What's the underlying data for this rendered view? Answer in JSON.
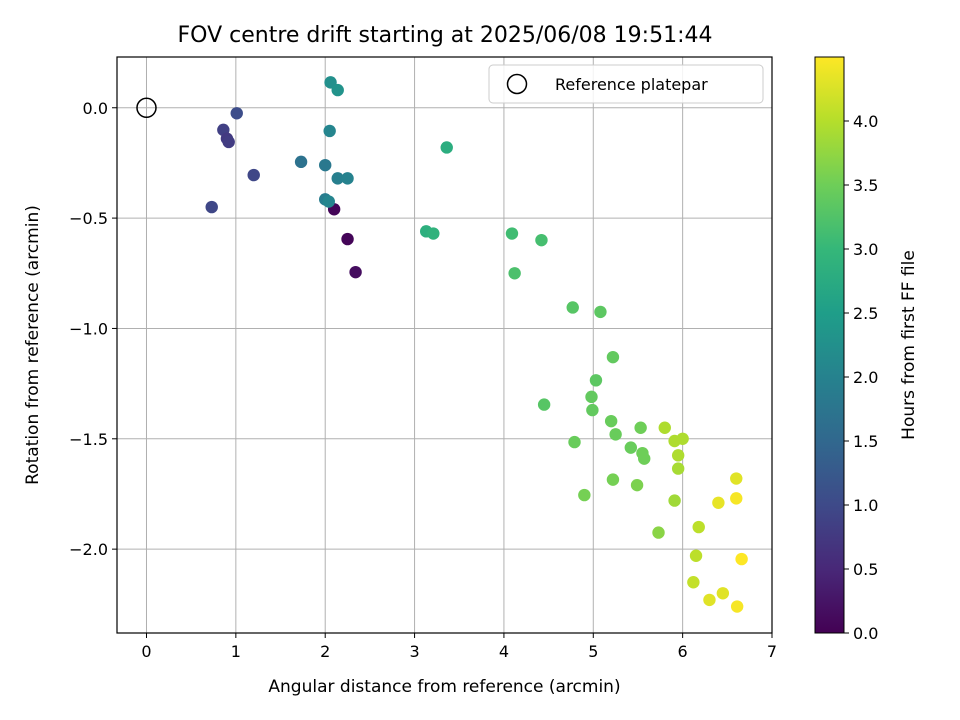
{
  "chart_data": {
    "type": "scatter",
    "title": "FOV centre drift starting at 2025/06/08 19:51:44",
    "xlabel": "Angular distance from reference (arcmin)",
    "ylabel": "Rotation from reference (arcmin)",
    "xlim": [
      -0.33,
      7.0
    ],
    "ylim": [
      -2.38,
      0.23
    ],
    "xticks": [
      0,
      1,
      2,
      3,
      4,
      5,
      6,
      7
    ],
    "xtick_labels": [
      "0",
      "1",
      "2",
      "3",
      "4",
      "5",
      "6",
      "7"
    ],
    "yticks": [
      0.0,
      -0.5,
      -1.0,
      -1.5,
      -2.0
    ],
    "ytick_labels": [
      "0.0",
      "−0.5",
      "−1.0",
      "−1.5",
      "−2.0"
    ],
    "grid": true,
    "legend": {
      "entries": [
        {
          "label": "Reference platepar",
          "marker": "open-circle"
        }
      ],
      "location": "upper right"
    },
    "reference_point": {
      "x": 0.0,
      "y": 0.0
    },
    "colorbar": {
      "label": "Hours from first FF file",
      "colormap": "viridis",
      "range": [
        0.0,
        4.5
      ],
      "ticks": [
        0.0,
        0.5,
        1.0,
        1.5,
        2.0,
        2.5,
        3.0,
        3.5,
        4.0
      ],
      "tick_labels": [
        "0.0",
        "0.5",
        "1.0",
        "1.5",
        "2.0",
        "2.5",
        "3.0",
        "3.5",
        "4.0"
      ]
    },
    "series": [
      {
        "points": [
          {
            "x": 2.1,
            "y": -0.46,
            "c": 0.05
          },
          {
            "x": 2.25,
            "y": -0.595,
            "c": 0.05
          },
          {
            "x": 2.34,
            "y": -0.745,
            "c": 0.15
          },
          {
            "x": 0.73,
            "y": -0.45,
            "c": 0.95
          },
          {
            "x": 1.01,
            "y": -0.025,
            "c": 1.05
          },
          {
            "x": 0.86,
            "y": -0.1,
            "c": 0.85
          },
          {
            "x": 0.9,
            "y": -0.14,
            "c": 0.75
          },
          {
            "x": 0.92,
            "y": -0.155,
            "c": 0.8
          },
          {
            "x": 1.2,
            "y": -0.305,
            "c": 0.95
          },
          {
            "x": 1.73,
            "y": -0.245,
            "c": 1.7
          },
          {
            "x": 2.0,
            "y": -0.26,
            "c": 1.8
          },
          {
            "x": 2.14,
            "y": -0.32,
            "c": 1.95
          },
          {
            "x": 2.25,
            "y": -0.32,
            "c": 2.0
          },
          {
            "x": 2.05,
            "y": -0.105,
            "c": 2.05
          },
          {
            "x": 2.0,
            "y": -0.415,
            "c": 1.9
          },
          {
            "x": 2.04,
            "y": -0.425,
            "c": 2.05
          },
          {
            "x": 2.06,
            "y": 0.115,
            "c": 2.25
          },
          {
            "x": 2.14,
            "y": 0.08,
            "c": 2.3
          },
          {
            "x": 3.36,
            "y": -0.18,
            "c": 2.8
          },
          {
            "x": 3.13,
            "y": -0.56,
            "c": 2.85
          },
          {
            "x": 3.21,
            "y": -0.57,
            "c": 2.9
          },
          {
            "x": 4.09,
            "y": -0.57,
            "c": 3.1
          },
          {
            "x": 4.42,
            "y": -0.6,
            "c": 3.15
          },
          {
            "x": 4.12,
            "y": -0.75,
            "c": 3.2
          },
          {
            "x": 4.77,
            "y": -0.905,
            "c": 3.3
          },
          {
            "x": 5.08,
            "y": -0.925,
            "c": 3.35
          },
          {
            "x": 5.22,
            "y": -1.13,
            "c": 3.4
          },
          {
            "x": 5.03,
            "y": -1.235,
            "c": 3.35
          },
          {
            "x": 4.98,
            "y": -1.31,
            "c": 3.4
          },
          {
            "x": 4.99,
            "y": -1.37,
            "c": 3.4
          },
          {
            "x": 4.45,
            "y": -1.345,
            "c": 3.3
          },
          {
            "x": 4.79,
            "y": -1.515,
            "c": 3.45
          },
          {
            "x": 5.2,
            "y": -1.42,
            "c": 3.45
          },
          {
            "x": 5.25,
            "y": -1.48,
            "c": 3.45
          },
          {
            "x": 5.42,
            "y": -1.54,
            "c": 3.45
          },
          {
            "x": 5.53,
            "y": -1.45,
            "c": 3.5
          },
          {
            "x": 5.55,
            "y": -1.565,
            "c": 3.5
          },
          {
            "x": 5.57,
            "y": -1.59,
            "c": 3.5
          },
          {
            "x": 4.9,
            "y": -1.755,
            "c": 3.55
          },
          {
            "x": 5.22,
            "y": -1.685,
            "c": 3.55
          },
          {
            "x": 5.49,
            "y": -1.71,
            "c": 3.6
          },
          {
            "x": 5.73,
            "y": -1.925,
            "c": 3.7
          },
          {
            "x": 5.8,
            "y": -1.45,
            "c": 3.95
          },
          {
            "x": 5.91,
            "y": -1.51,
            "c": 3.95
          },
          {
            "x": 6.0,
            "y": -1.5,
            "c": 3.95
          },
          {
            "x": 5.95,
            "y": -1.575,
            "c": 3.95
          },
          {
            "x": 5.95,
            "y": -1.635,
            "c": 3.9
          },
          {
            "x": 5.91,
            "y": -1.78,
            "c": 3.85
          },
          {
            "x": 6.18,
            "y": -1.9,
            "c": 4.05
          },
          {
            "x": 6.15,
            "y": -2.03,
            "c": 4.05
          },
          {
            "x": 6.12,
            "y": -2.15,
            "c": 4.1
          },
          {
            "x": 6.4,
            "y": -1.79,
            "c": 4.35
          },
          {
            "x": 6.6,
            "y": -1.68,
            "c": 4.3
          },
          {
            "x": 6.6,
            "y": -1.77,
            "c": 4.45
          },
          {
            "x": 6.66,
            "y": -2.045,
            "c": 4.5
          },
          {
            "x": 6.3,
            "y": -2.23,
            "c": 4.3
          },
          {
            "x": 6.45,
            "y": -2.2,
            "c": 4.3
          },
          {
            "x": 6.61,
            "y": -2.26,
            "c": 4.45
          }
        ]
      }
    ]
  }
}
